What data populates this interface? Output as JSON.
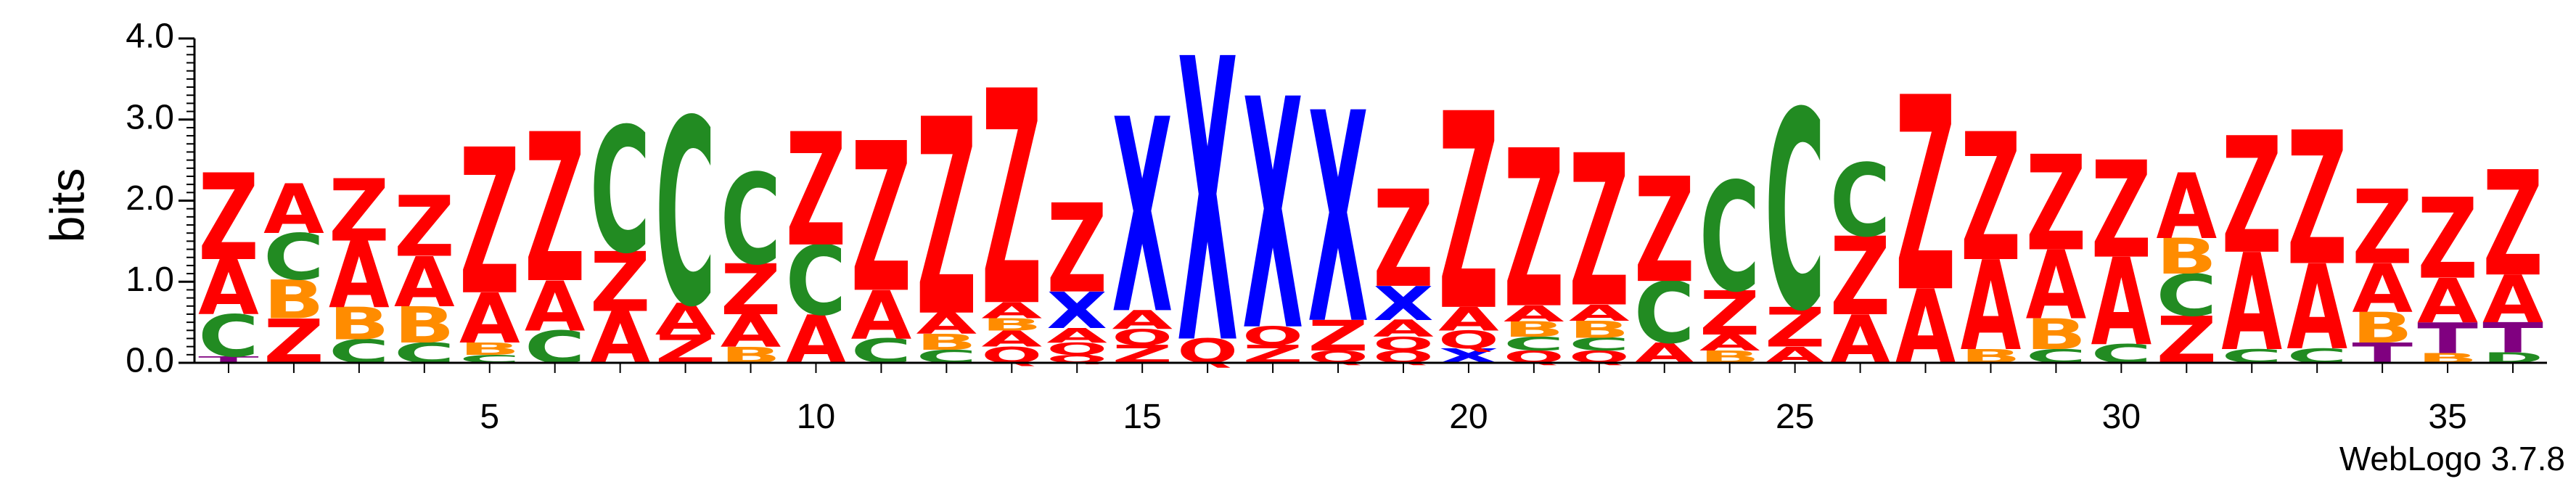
{
  "chart_data": {
    "type": "sequence-logo",
    "ylabel": "bits",
    "ylim": [
      0,
      4
    ],
    "y_ticks": [
      "0.0",
      "1.0",
      "2.0",
      "3.0",
      "4.0"
    ],
    "x_ticks": [
      "5",
      "10",
      "15",
      "20",
      "25",
      "30",
      "35"
    ],
    "x_tick_positions": [
      5,
      10,
      15,
      20,
      25,
      30,
      35
    ],
    "positions": 36,
    "credit": "WebLogo 3.7.8",
    "colors": {
      "Z": "#ff0000",
      "A": "#ff0000",
      "C": "#228b22",
      "B": "#ff8c00",
      "X": "#0000ff",
      "Q": "#ff0000",
      "T": "#800080",
      "D": "#228b22"
    },
    "columns": [
      [
        [
          "T",
          0.08
        ],
        [
          "C",
          0.52
        ],
        [
          "A",
          0.68
        ],
        [
          "Z",
          1.07
        ]
      ],
      [
        [
          "Z",
          0.55
        ],
        [
          "B",
          0.48
        ],
        [
          "C",
          0.57
        ],
        [
          "A",
          0.61
        ]
      ],
      [
        [
          "C",
          0.29
        ],
        [
          "B",
          0.4
        ],
        [
          "A",
          0.82
        ],
        [
          "Z",
          0.77
        ]
      ],
      [
        [
          "C",
          0.25
        ],
        [
          "B",
          0.45
        ],
        [
          "A",
          0.62
        ],
        [
          "Z",
          0.75
        ]
      ],
      [
        [
          "C",
          0.1
        ],
        [
          "B",
          0.15
        ],
        [
          "A",
          0.62
        ],
        [
          "Z",
          1.8
        ]
      ],
      [
        [
          "C",
          0.4
        ],
        [
          "A",
          0.62
        ],
        [
          "Z",
          1.84
        ]
      ],
      [
        [
          "A",
          0.64
        ],
        [
          "Z",
          0.74
        ],
        [
          "C",
          1.55
        ]
      ],
      [
        [
          "Z",
          0.35
        ],
        [
          "A",
          0.39
        ],
        [
          "C",
          2.3
        ]
      ],
      [
        [
          "B",
          0.2
        ],
        [
          "A",
          0.4
        ],
        [
          "Z",
          0.63
        ],
        [
          "C",
          1.12
        ]
      ],
      [
        [
          "A",
          0.6
        ],
        [
          "C",
          0.86
        ],
        [
          "Z",
          1.4
        ]
      ],
      [
        [
          "C",
          0.3
        ],
        [
          "A",
          0.6
        ],
        [
          "Z",
          1.85
        ]
      ],
      [
        [
          "C",
          0.16
        ],
        [
          "B",
          0.2
        ],
        [
          "A",
          0.26
        ],
        [
          "Z",
          2.43
        ]
      ],
      [
        [
          "Q",
          0.2
        ],
        [
          "A",
          0.2
        ],
        [
          "B",
          0.15
        ],
        [
          "A",
          0.2
        ],
        [
          "Z",
          2.65
        ]
      ],
      [
        [
          "Q",
          0.1
        ],
        [
          "Q",
          0.15
        ],
        [
          "A",
          0.18
        ],
        [
          "X",
          0.45
        ],
        [
          "Z",
          1.1
        ]
      ],
      [
        [
          "Z",
          0.22
        ],
        [
          "Q",
          0.2
        ],
        [
          "A",
          0.23
        ],
        [
          "X",
          2.4
        ]
      ],
      [
        [
          "Q",
          0.3
        ],
        [
          "X",
          3.5
        ]
      ],
      [
        [
          "Z",
          0.22
        ],
        [
          "Q",
          0.23
        ],
        [
          "X",
          2.85
        ]
      ],
      [
        [
          "Q",
          0.15
        ],
        [
          "Z",
          0.38
        ],
        [
          "X",
          2.6
        ]
      ],
      [
        [
          "Q",
          0.15
        ],
        [
          "Q",
          0.17
        ],
        [
          "A",
          0.21
        ],
        [
          "X",
          0.42
        ],
        [
          "Z",
          1.2
        ]
      ],
      [
        [
          "X",
          0.18
        ],
        [
          "Q",
          0.22
        ],
        [
          "A",
          0.29
        ],
        [
          "Z",
          2.43
        ]
      ],
      [
        [
          "Q",
          0.15
        ],
        [
          "C",
          0.17
        ],
        [
          "B",
          0.19
        ],
        [
          "A",
          0.2
        ],
        [
          "Z",
          1.95
        ]
      ],
      [
        [
          "Q",
          0.15
        ],
        [
          "C",
          0.16
        ],
        [
          "B",
          0.21
        ],
        [
          "A",
          0.2
        ],
        [
          "Z",
          1.88
        ]
      ],
      [
        [
          "A",
          0.25
        ],
        [
          "C",
          0.76
        ],
        [
          "Z",
          1.3
        ]
      ],
      [
        [
          "B",
          0.15
        ],
        [
          "A",
          0.2
        ],
        [
          "Z",
          0.55
        ],
        [
          "C",
          1.35
        ]
      ],
      [
        [
          "A",
          0.2
        ],
        [
          "Z",
          0.49
        ],
        [
          "C",
          2.45
        ]
      ],
      [
        [
          "A",
          0.6
        ],
        [
          "Z",
          0.97
        ],
        [
          "C",
          0.9
        ]
      ],
      [
        [
          "A",
          0.92
        ],
        [
          "Z",
          2.4
        ]
      ],
      [
        [
          "B",
          0.17
        ],
        [
          "A",
          1.11
        ],
        [
          "Z",
          1.58
        ]
      ],
      [
        [
          "C",
          0.17
        ],
        [
          "B",
          0.38
        ],
        [
          "A",
          0.85
        ],
        [
          "Z",
          1.18
        ]
      ],
      [
        [
          "C",
          0.23
        ],
        [
          "A",
          1.08
        ],
        [
          "Z",
          1.2
        ]
      ],
      [
        [
          "Z",
          0.58
        ],
        [
          "C",
          0.52
        ],
        [
          "B",
          0.44
        ],
        [
          "A",
          0.81
        ]
      ],
      [
        [
          "C",
          0.17
        ],
        [
          "A",
          1.2
        ],
        [
          "Z",
          1.44
        ]
      ],
      [
        [
          "C",
          0.18
        ],
        [
          "A",
          1.05
        ],
        [
          "Z",
          1.65
        ]
      ],
      [
        [
          "T",
          0.25
        ],
        [
          "B",
          0.38
        ],
        [
          "A",
          0.6
        ],
        [
          "Z",
          0.92
        ]
      ],
      [
        [
          "B",
          0.12
        ],
        [
          "T",
          0.38
        ],
        [
          "A",
          0.55
        ],
        [
          "Z",
          1.0
        ]
      ],
      [
        [
          "D",
          0.13
        ],
        [
          "T",
          0.37
        ],
        [
          "A",
          0.59
        ],
        [
          "Z",
          1.3
        ]
      ]
    ]
  }
}
